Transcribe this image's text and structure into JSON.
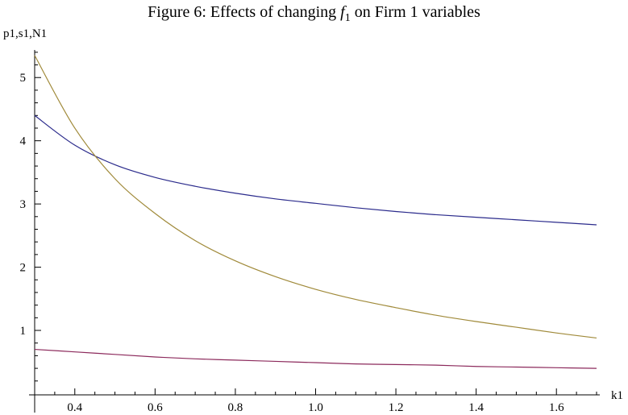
{
  "chart_data": {
    "type": "line",
    "title_prefix": "Figure 6: Effects of changing ",
    "title_var": "f",
    "title_sub": "1",
    "title_suffix": " on Firm 1 variables",
    "xlabel": "k1",
    "ylabel": "p1,s1,N1",
    "xlim": [
      0.3,
      1.7
    ],
    "ylim": [
      -0.3,
      5.5
    ],
    "x_ticks": [
      0.4,
      0.6,
      0.8,
      1.0,
      1.2,
      1.4,
      1.6
    ],
    "x_tick_labels": [
      "0.4",
      "0.6",
      "0.8",
      "1.0",
      "1.2",
      "1.4",
      "1.6"
    ],
    "y_ticks": [
      1,
      2,
      3,
      4,
      5
    ],
    "y_tick_labels": [
      "1",
      "2",
      "3",
      "4",
      "5"
    ],
    "grid": false,
    "series": [
      {
        "color": "#2b2b8c",
        "x": [
          0.3,
          0.4,
          0.5,
          0.6,
          0.7,
          0.8,
          0.9,
          1.0,
          1.1,
          1.2,
          1.3,
          1.4,
          1.5,
          1.6,
          1.7
        ],
        "values": [
          4.4,
          3.93,
          3.62,
          3.42,
          3.28,
          3.17,
          3.08,
          3.01,
          2.94,
          2.88,
          2.83,
          2.79,
          2.75,
          2.71,
          2.67
        ]
      },
      {
        "color": "#a08a3a",
        "x": [
          0.3,
          0.4,
          0.5,
          0.6,
          0.7,
          0.8,
          0.9,
          1.0,
          1.1,
          1.2,
          1.3,
          1.4,
          1.5,
          1.6,
          1.7
        ],
        "values": [
          5.35,
          4.2,
          3.4,
          2.85,
          2.42,
          2.1,
          1.85,
          1.65,
          1.49,
          1.36,
          1.24,
          1.14,
          1.05,
          0.96,
          0.88
        ]
      },
      {
        "color": "#8c2a5c",
        "x": [
          0.3,
          0.4,
          0.5,
          0.6,
          0.7,
          0.8,
          0.9,
          1.0,
          1.1,
          1.2,
          1.3,
          1.4,
          1.5,
          1.6,
          1.7
        ],
        "values": [
          0.7,
          0.66,
          0.62,
          0.58,
          0.55,
          0.53,
          0.51,
          0.49,
          0.47,
          0.46,
          0.45,
          0.43,
          0.42,
          0.41,
          0.4
        ]
      }
    ]
  }
}
